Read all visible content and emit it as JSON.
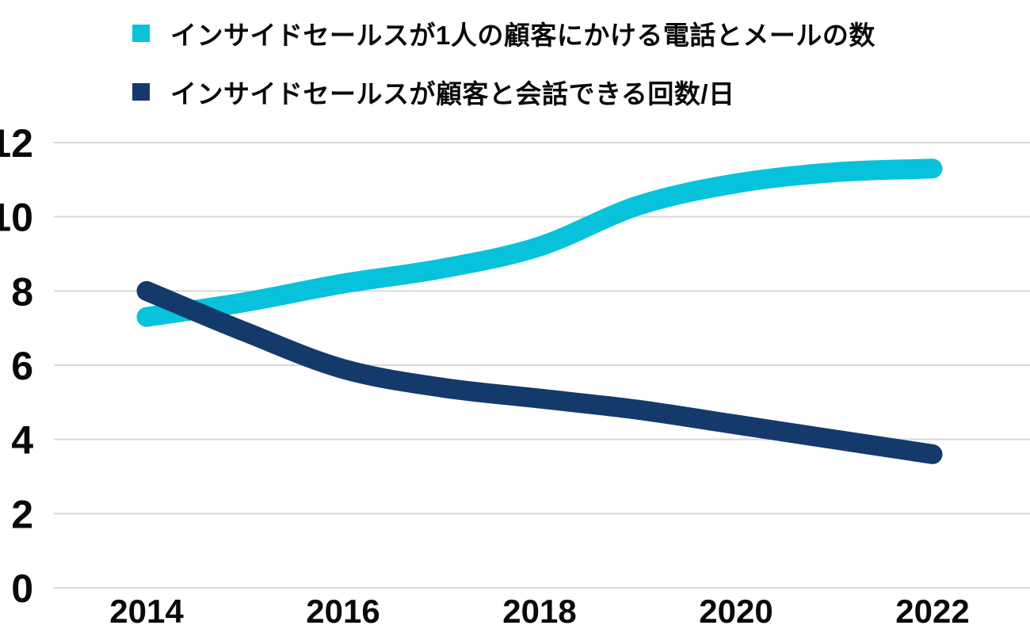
{
  "legend": {
    "items": [
      {
        "label": "インサイドセールスが1人の顧客にかける電話とメールの数",
        "color": "#06C3DB"
      },
      {
        "label": "インサイドセールスが顧客と会話できる回数/日",
        "color": "#143A6C"
      }
    ]
  },
  "chart_data": {
    "type": "line",
    "x": [
      2014,
      2015,
      2016,
      2017,
      2018,
      2019,
      2020,
      2021,
      2022
    ],
    "series": [
      {
        "name": "インサイドセールスが1人の顧客にかける電話とメールの数",
        "color": "#06C3DB",
        "values": [
          7.3,
          7.7,
          8.2,
          8.6,
          9.2,
          10.3,
          10.9,
          11.2,
          11.3
        ]
      },
      {
        "name": "インサイドセールスが顧客と会話できる回数/日",
        "color": "#143A6C",
        "values": [
          8.0,
          6.9,
          5.9,
          5.4,
          5.1,
          4.8,
          4.4,
          4.0,
          3.6
        ]
      }
    ],
    "y_ticks": [
      0,
      2,
      4,
      6,
      8,
      10,
      12
    ],
    "x_tick_years": [
      2014,
      2016,
      2018,
      2020,
      2022
    ],
    "x_tick_labels": [
      "2014",
      "2016",
      "2018",
      "2020",
      "2022"
    ],
    "ylim": [
      0,
      12
    ],
    "xlim": [
      2014,
      2022
    ],
    "title": "",
    "xlabel": "",
    "ylabel": "",
    "grid": "horizontal",
    "gridline_color": "#D8D8D8",
    "background": "#FFFFFF",
    "text_color": "#0A0A0A",
    "legend_position": "top-left",
    "line_width": 25
  }
}
